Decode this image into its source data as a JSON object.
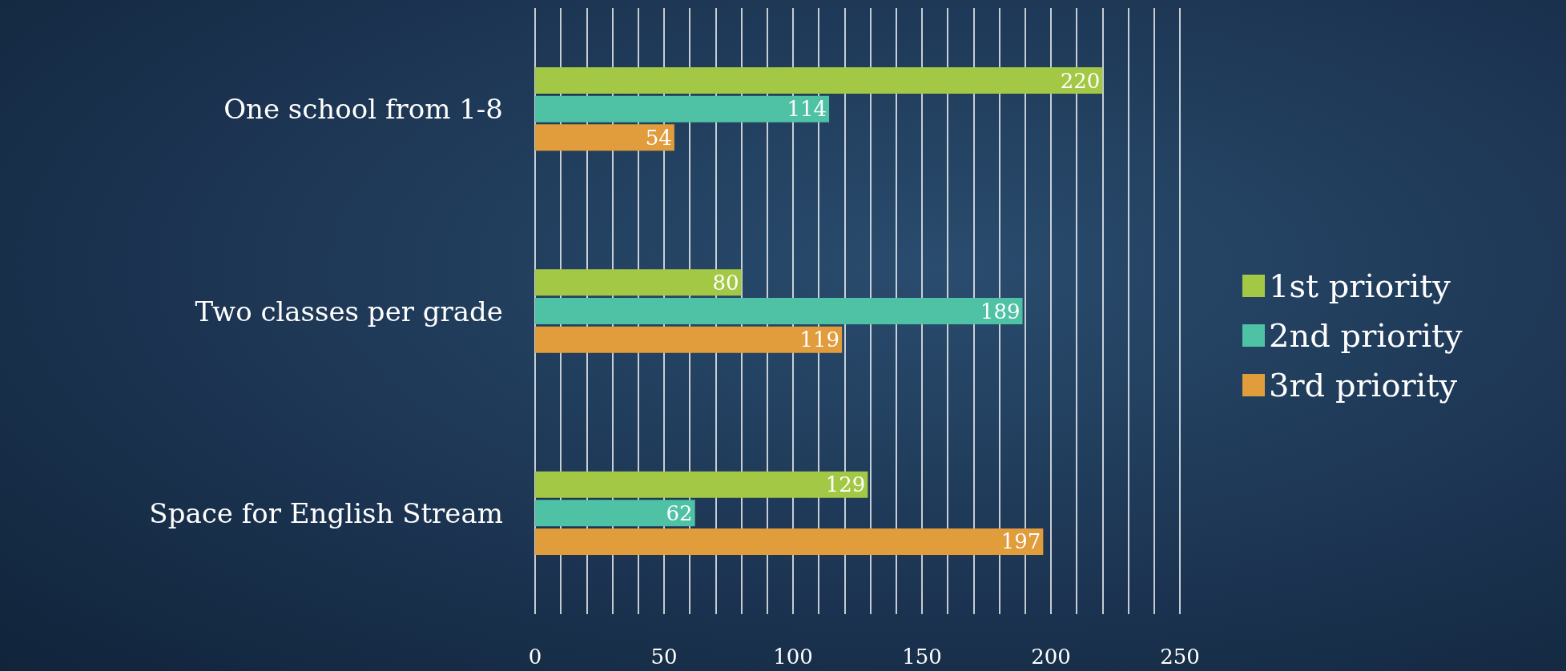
{
  "chart_data": {
    "type": "bar",
    "orientation": "horizontal",
    "categories": [
      "One school from 1-8",
      "Two classes per grade",
      "Space for English Stream"
    ],
    "series": [
      {
        "name": "1st priority",
        "color": "#a2c845",
        "values": [
          220,
          80,
          129
        ]
      },
      {
        "name": "2nd priority",
        "color": "#4fc1a4",
        "values": [
          114,
          189,
          62
        ]
      },
      {
        "name": "3rd priority",
        "color": "#e19c3c",
        "values": [
          54,
          119,
          197
        ]
      }
    ],
    "xlim": [
      0,
      250
    ],
    "xticks": [
      0,
      {
        "value": 10,
        "label": null
      },
      {
        "value": 20,
        "label": null
      },
      {
        "value": 30,
        "label": null
      },
      {
        "value": 40,
        "label": null
      },
      50,
      {
        "value": 60,
        "label": null
      },
      {
        "value": 70,
        "label": null
      },
      {
        "value": 80,
        "label": null
      },
      {
        "value": 90,
        "label": null
      },
      100,
      {
        "value": 110,
        "label": null
      },
      {
        "value": 120,
        "label": null
      },
      {
        "value": 130,
        "label": null
      },
      {
        "value": 140,
        "label": null
      },
      150,
      {
        "value": 160,
        "label": null
      },
      {
        "value": 170,
        "label": null
      },
      {
        "value": 180,
        "label": null
      },
      {
        "value": 190,
        "label": null
      },
      200,
      {
        "value": 210,
        "label": null
      },
      {
        "value": 220,
        "label": null
      },
      {
        "value": 230,
        "label": null
      },
      {
        "value": 240,
        "label": null
      },
      250
    ],
    "grid": "x",
    "legend": "right",
    "data_labels": true
  }
}
